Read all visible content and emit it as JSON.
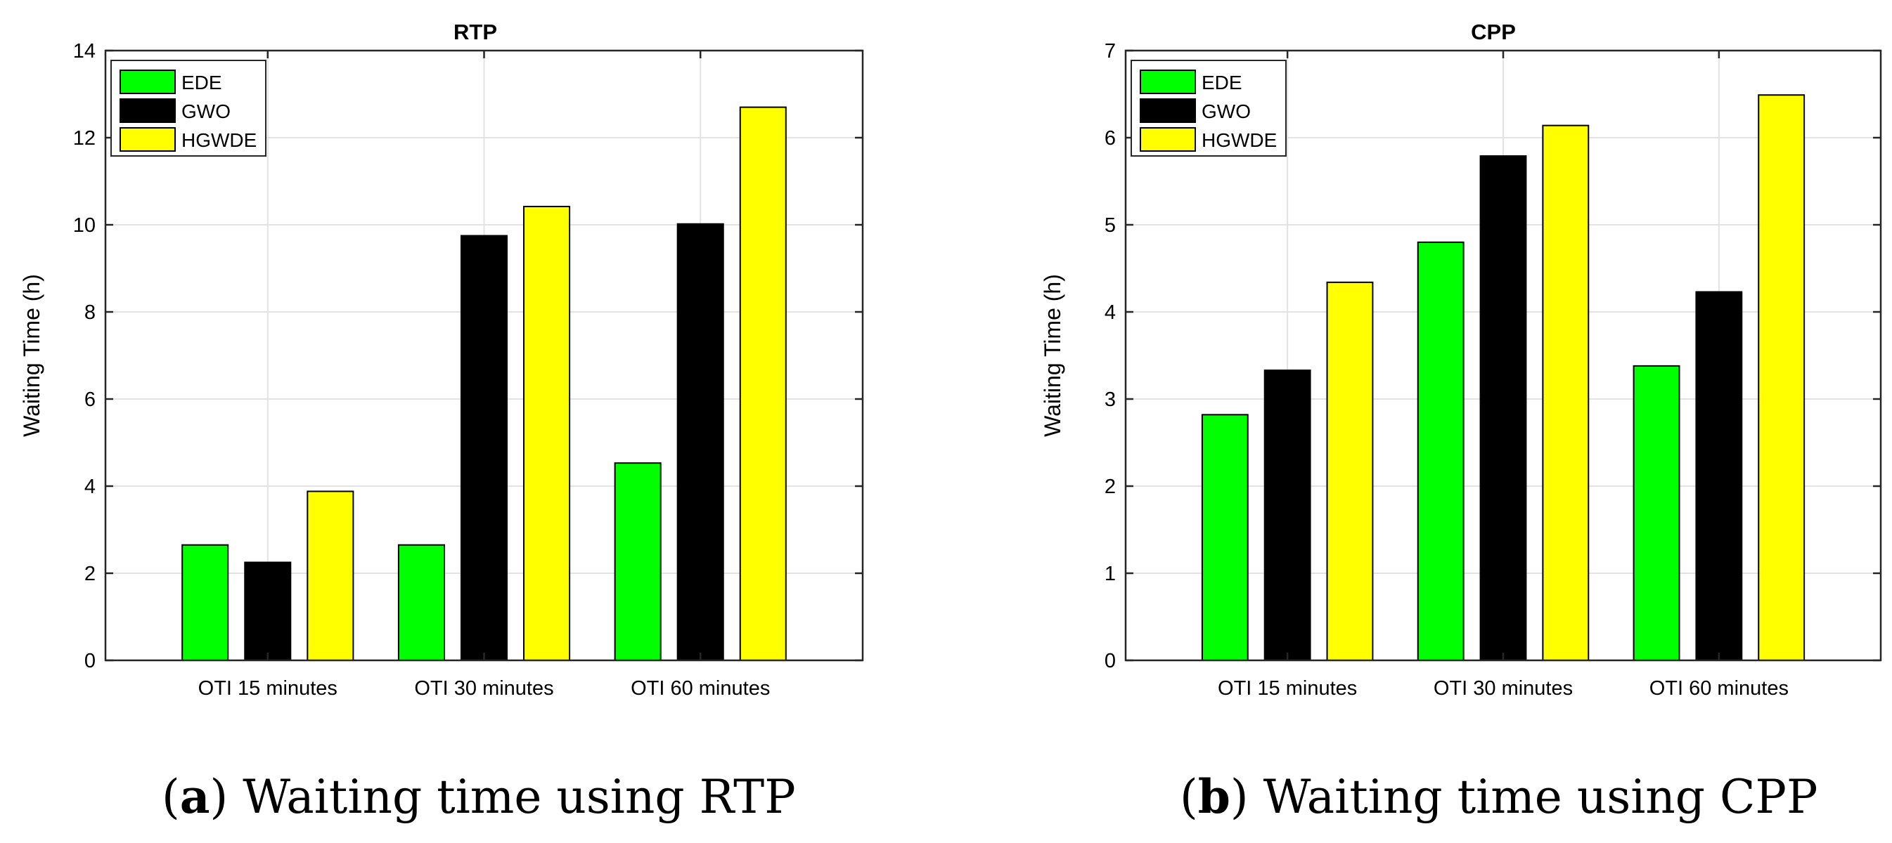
{
  "chart_data": [
    {
      "type": "bar",
      "title": "RTP",
      "xlabel": "",
      "ylabel": "Waiting Time (h)",
      "ylim": [
        0,
        14
      ],
      "yticks": [
        0,
        2,
        4,
        6,
        8,
        10,
        12,
        14
      ],
      "grid": true,
      "legend_position": "top-left",
      "categories": [
        "OTI 15 minutes",
        "OTI 30 minutes",
        "OTI 60 minutes"
      ],
      "series": [
        {
          "name": "EDE",
          "color": "#00ff00",
          "values": [
            2.65,
            2.65,
            4.53
          ]
        },
        {
          "name": "GWO",
          "color": "#000000",
          "values": [
            2.25,
            9.75,
            10.02
          ]
        },
        {
          "name": "HGWDE",
          "color": "#ffff00",
          "values": [
            3.88,
            10.42,
            12.7
          ]
        }
      ],
      "caption_letter": "a",
      "caption_text": "Waiting time using RTP"
    },
    {
      "type": "bar",
      "title": "CPP",
      "xlabel": "",
      "ylabel": "Waiting Time (h)",
      "ylim": [
        0,
        7
      ],
      "yticks": [
        0,
        1,
        2,
        3,
        4,
        5,
        6,
        7
      ],
      "grid": true,
      "legend_position": "top-left",
      "categories": [
        "OTI 15 minutes",
        "OTI 30 minutes",
        "OTI 60 minutes"
      ],
      "series": [
        {
          "name": "EDE",
          "color": "#00ff00",
          "values": [
            2.82,
            4.8,
            3.38
          ]
        },
        {
          "name": "GWO",
          "color": "#000000",
          "values": [
            3.33,
            5.79,
            4.23
          ]
        },
        {
          "name": "HGWDE",
          "color": "#ffff00",
          "values": [
            4.34,
            6.14,
            6.49
          ]
        }
      ],
      "caption_letter": "b",
      "caption_text": "Waiting time using CPP"
    }
  ]
}
